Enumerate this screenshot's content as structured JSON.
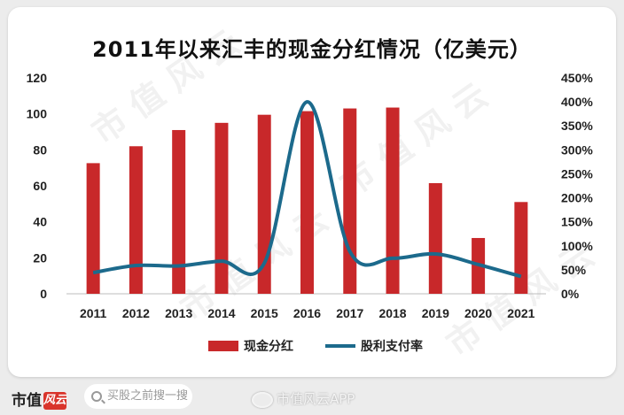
{
  "chart_data": {
    "type": "bar",
    "title": "2011年以来汇丰的现金分红情况（亿美元）",
    "categories": [
      "2011",
      "2012",
      "2013",
      "2014",
      "2015",
      "2016",
      "2017",
      "2018",
      "2019",
      "2020",
      "2021"
    ],
    "series": [
      {
        "name": "现金分红",
        "type": "bar",
        "axis": "left",
        "color": "#c8282a",
        "values": [
          72.6,
          82,
          91,
          95,
          99.5,
          101.5,
          103,
          103.5,
          61.5,
          31,
          51
        ]
      },
      {
        "name": "股利支付率",
        "type": "line",
        "axis": "right",
        "color": "#1c6a8c",
        "values": [
          0.44,
          0.59,
          0.58,
          0.68,
          0.64,
          4.0,
          0.88,
          0.74,
          0.83,
          0.61,
          0.36
        ]
      }
    ],
    "y_left": {
      "min": 0,
      "max": 120,
      "ticks": [
        "0",
        "20",
        "40",
        "60",
        "80",
        "100",
        "120"
      ]
    },
    "y_right": {
      "min": 0,
      "max": 4.5,
      "ticks": [
        "0%",
        "50%",
        "100%",
        "150%",
        "200%",
        "250%",
        "300%",
        "350%",
        "400%",
        "450%"
      ]
    },
    "grid": false,
    "legend_position": "bottom"
  },
  "footer": {
    "brand_text": "市值",
    "brand_logo_text": "风云",
    "search_placeholder": "买股之前搜一搜",
    "weibo_text": "市值风云APP"
  }
}
